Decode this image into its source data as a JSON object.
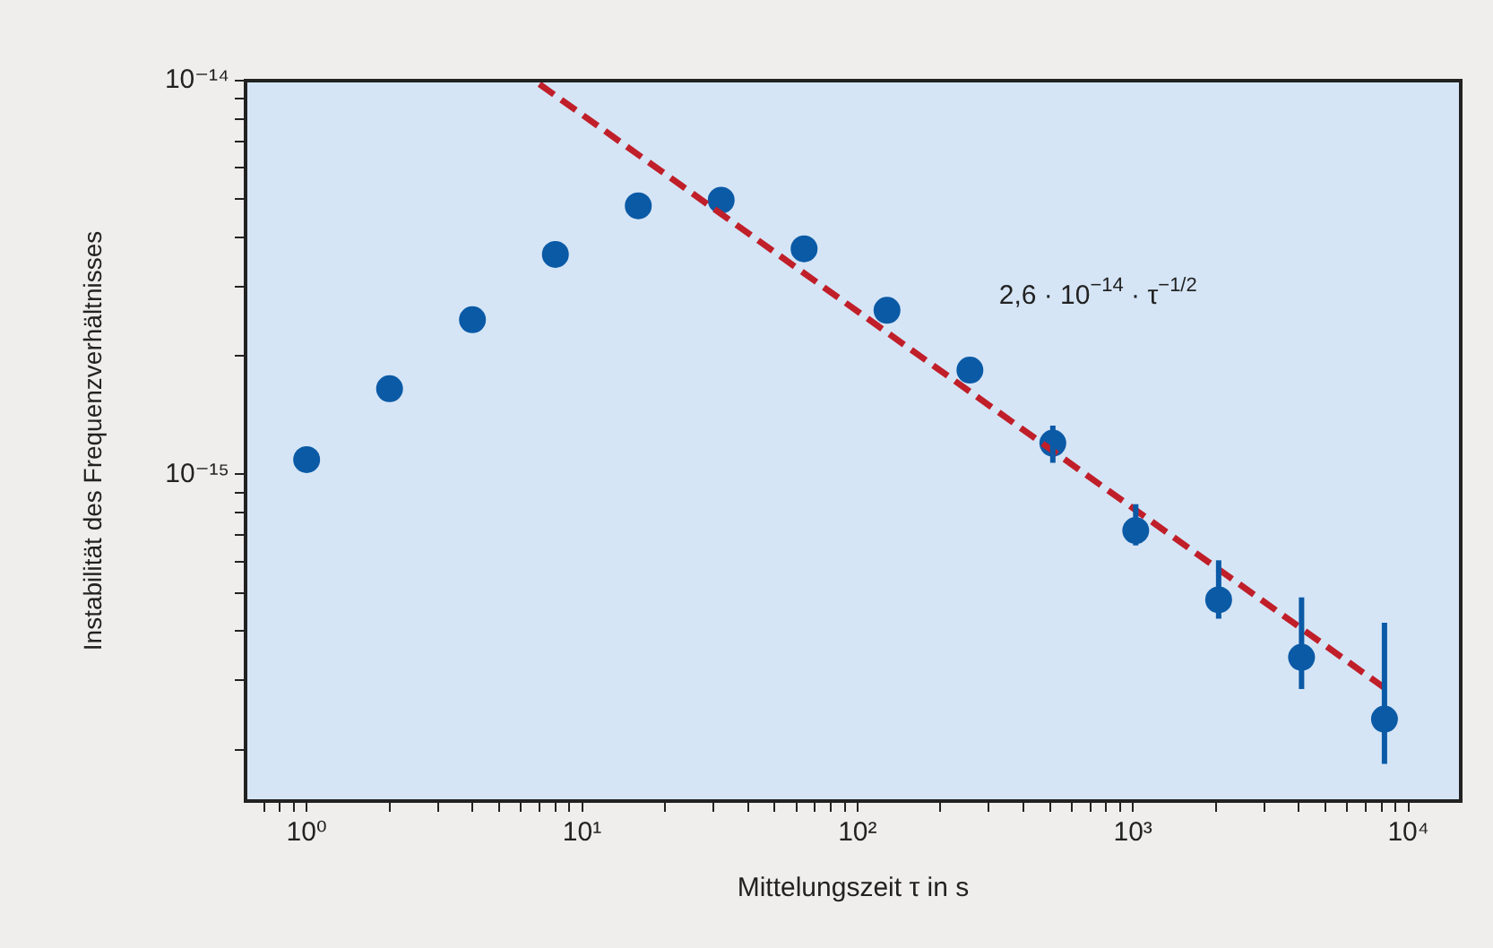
{
  "chart_data": {
    "type": "scatter",
    "xlabel": "Mittelungszeit τ in s",
    "ylabel": "Instabilität des Frequenzverhältnisses",
    "log": "xy",
    "grid": false,
    "legend": false,
    "xlim": [
      0.62,
      15500
    ],
    "ylim": [
      1.48e-16,
      1e-14
    ],
    "xticks": [
      {
        "value": 0.7,
        "label": null
      },
      {
        "value": 0.8,
        "label": null
      },
      {
        "value": 0.9,
        "label": null
      },
      {
        "value": 1,
        "label": "10⁰"
      },
      {
        "value": 2,
        "label": null
      },
      {
        "value": 3,
        "label": null
      },
      {
        "value": 4,
        "label": null
      },
      {
        "value": 5,
        "label": null
      },
      {
        "value": 6,
        "label": null
      },
      {
        "value": 7,
        "label": null
      },
      {
        "value": 8,
        "label": null
      },
      {
        "value": 9,
        "label": null
      },
      {
        "value": 10,
        "label": "10¹"
      },
      {
        "value": 20,
        "label": null
      },
      {
        "value": 30,
        "label": null
      },
      {
        "value": 40,
        "label": null
      },
      {
        "value": 50,
        "label": null
      },
      {
        "value": 60,
        "label": null
      },
      {
        "value": 70,
        "label": null
      },
      {
        "value": 80,
        "label": null
      },
      {
        "value": 90,
        "label": null
      },
      {
        "value": 100,
        "label": "10²"
      },
      {
        "value": 200,
        "label": null
      },
      {
        "value": 300,
        "label": null
      },
      {
        "value": 400,
        "label": null
      },
      {
        "value": 500,
        "label": null
      },
      {
        "value": 600,
        "label": null
      },
      {
        "value": 700,
        "label": null
      },
      {
        "value": 800,
        "label": null
      },
      {
        "value": 900,
        "label": null
      },
      {
        "value": 1000,
        "label": "10³"
      },
      {
        "value": 2000,
        "label": null
      },
      {
        "value": 3000,
        "label": null
      },
      {
        "value": 4000,
        "label": null
      },
      {
        "value": 5000,
        "label": null
      },
      {
        "value": 6000,
        "label": null
      },
      {
        "value": 7000,
        "label": null
      },
      {
        "value": 8000,
        "label": null
      },
      {
        "value": 9000,
        "label": null
      },
      {
        "value": 10000,
        "label": "10⁴"
      }
    ],
    "yticks": [
      {
        "value": 2e-16,
        "label": null
      },
      {
        "value": 3e-16,
        "label": null
      },
      {
        "value": 4e-16,
        "label": null
      },
      {
        "value": 5e-16,
        "label": null
      },
      {
        "value": 6e-16,
        "label": null
      },
      {
        "value": 7e-16,
        "label": null
      },
      {
        "value": 8e-16,
        "label": null
      },
      {
        "value": 9e-16,
        "label": null
      },
      {
        "value": 1e-15,
        "label": "10⁻¹⁵"
      },
      {
        "value": 2e-15,
        "label": null
      },
      {
        "value": 3e-15,
        "label": null
      },
      {
        "value": 4e-15,
        "label": null
      },
      {
        "value": 5e-15,
        "label": null
      },
      {
        "value": 6e-15,
        "label": null
      },
      {
        "value": 7e-15,
        "label": null
      },
      {
        "value": 8e-15,
        "label": null
      },
      {
        "value": 9e-15,
        "label": null
      },
      {
        "value": 1e-14,
        "label": "10⁻¹⁴"
      }
    ],
    "annotations": [
      "2,6 · 10$^{−14}$ · τ$^{−1/2}$"
    ],
    "series": [
      {
        "color": "#0b5aa6",
        "marker": "circle",
        "x": [
          1,
          2,
          4,
          8,
          16,
          32,
          64,
          128,
          256,
          512,
          1024,
          2048,
          4096,
          8192
        ],
        "values": [
          1.09e-15,
          1.65e-15,
          2.47e-15,
          3.62e-15,
          4.81e-15,
          4.97e-15,
          3.74e-15,
          2.61e-15,
          1.84e-15,
          1.2e-15,
          7.2e-16,
          4.8e-16,
          3.43e-16,
          2.39e-16
        ],
        "errors": [
          null,
          null,
          null,
          null,
          null,
          null,
          null,
          null,
          null,
          [
            1.07e-15,
            1.33e-15
          ],
          [
            6.6e-16,
            8.4e-16
          ],
          [
            4.3e-16,
            6.05e-16
          ],
          [
            2.85e-16,
            4.87e-16
          ],
          [
            1.84e-16,
            4.2e-16
          ]
        ]
      },
      {
        "type": "line",
        "color": "#c01f2a",
        "line_style": "dashed",
        "marker": "none",
        "x": [
          7,
          8192
        ],
        "values": [
          9.8e-15,
          2.87e-16
        ]
      }
    ]
  }
}
